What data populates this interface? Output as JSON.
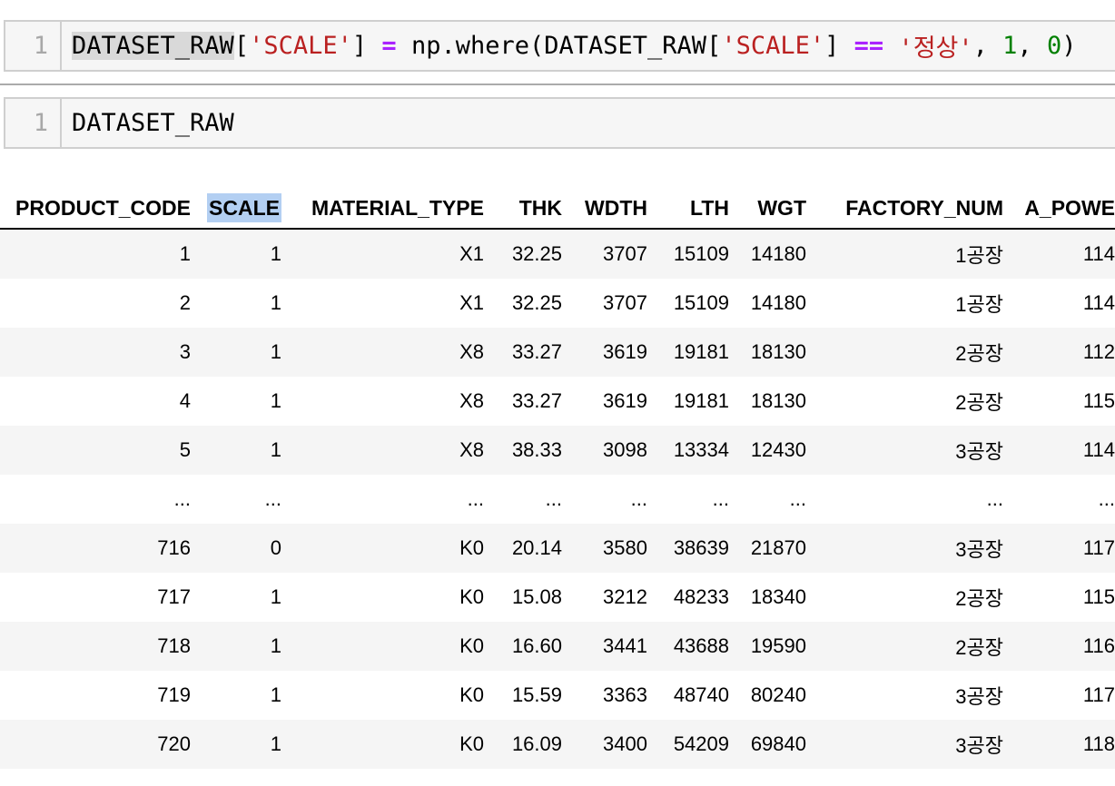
{
  "notebook": {
    "cells": [
      {
        "line_number": "1",
        "tokens": [
          {
            "text": "DATASET_RAW",
            "type": "name",
            "highlight": true
          },
          {
            "text": "[",
            "type": "p"
          },
          {
            "text": "'SCALE'",
            "type": "str"
          },
          {
            "text": "]",
            "type": "p"
          },
          {
            "text": " ",
            "type": "p"
          },
          {
            "text": "=",
            "type": "op"
          },
          {
            "text": " ",
            "type": "p"
          },
          {
            "text": "np.where(",
            "type": "name"
          },
          {
            "text": "DATASET_RAW",
            "type": "name"
          },
          {
            "text": "[",
            "type": "p"
          },
          {
            "text": "'SCALE'",
            "type": "str"
          },
          {
            "text": "]",
            "type": "p"
          },
          {
            "text": " ",
            "type": "p"
          },
          {
            "text": "==",
            "type": "op"
          },
          {
            "text": " ",
            "type": "p"
          },
          {
            "text": "'정상'",
            "type": "str"
          },
          {
            "text": ", ",
            "type": "p"
          },
          {
            "text": "1",
            "type": "num"
          },
          {
            "text": ", ",
            "type": "p"
          },
          {
            "text": "0",
            "type": "num"
          },
          {
            "text": ")",
            "type": "p"
          }
        ]
      },
      {
        "line_number": "1",
        "tokens": [
          {
            "text": "DATASET_RAW",
            "type": "name"
          }
        ]
      }
    ]
  },
  "table": {
    "columns": [
      {
        "label": "PRODUCT_CODE",
        "highlighted": false
      },
      {
        "label": "SCALE",
        "highlighted": true
      },
      {
        "label": "MATERIAL_TYPE",
        "highlighted": false
      },
      {
        "label": "THK",
        "highlighted": false
      },
      {
        "label": "WDTH",
        "highlighted": false
      },
      {
        "label": "LTH",
        "highlighted": false
      },
      {
        "label": "WGT",
        "highlighted": false
      },
      {
        "label": "FACTORY_NUM",
        "highlighted": false
      },
      {
        "label": "A_POWE",
        "highlighted": false
      }
    ],
    "rows": [
      [
        "1",
        "1",
        "X1",
        "32.25",
        "3707",
        "15109",
        "14180",
        "1공장",
        "114"
      ],
      [
        "2",
        "1",
        "X1",
        "32.25",
        "3707",
        "15109",
        "14180",
        "1공장",
        "114"
      ],
      [
        "3",
        "1",
        "X8",
        "33.27",
        "3619",
        "19181",
        "18130",
        "2공장",
        "112"
      ],
      [
        "4",
        "1",
        "X8",
        "33.27",
        "3619",
        "19181",
        "18130",
        "2공장",
        "115"
      ],
      [
        "5",
        "1",
        "X8",
        "38.33",
        "3098",
        "13334",
        "12430",
        "3공장",
        "114"
      ],
      [
        "...",
        "...",
        "...",
        "...",
        "...",
        "...",
        "...",
        "...",
        "..."
      ],
      [
        "716",
        "0",
        "K0",
        "20.14",
        "3580",
        "38639",
        "21870",
        "3공장",
        "117"
      ],
      [
        "717",
        "1",
        "K0",
        "15.08",
        "3212",
        "48233",
        "18340",
        "2공장",
        "115"
      ],
      [
        "718",
        "1",
        "K0",
        "16.60",
        "3441",
        "43688",
        "19590",
        "2공장",
        "116"
      ],
      [
        "719",
        "1",
        "K0",
        "15.59",
        "3363",
        "48740",
        "80240",
        "3공장",
        "117"
      ],
      [
        "720",
        "1",
        "K0",
        "16.09",
        "3400",
        "54209",
        "69840",
        "3공장",
        "118"
      ]
    ]
  },
  "colors": {
    "string": "#BA2121",
    "operator": "#AA22FF",
    "number": "#008000",
    "gray_selection": "#d9d9d9",
    "blue_selection": "#b3cff2",
    "cell_background": "#f6f6f6",
    "cell_border": "#cfcfcf",
    "row_stripe": "#f5f5f5"
  }
}
